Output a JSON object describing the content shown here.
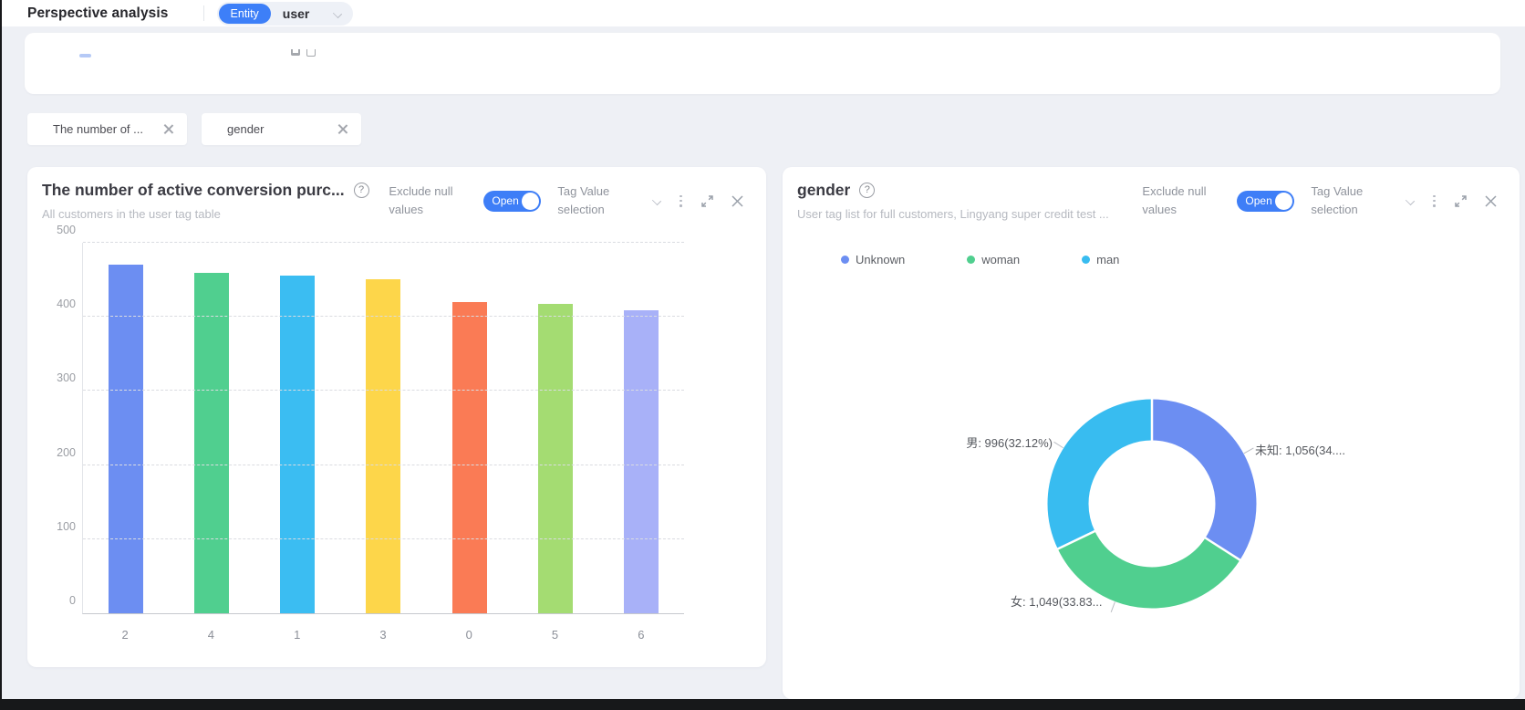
{
  "topbar": {
    "title": "Perspective analysis",
    "entity_badge": "Entity",
    "entity_value": "user"
  },
  "icons": {
    "help": "?"
  },
  "filter_tabs": [
    {
      "label": "The number of ..."
    },
    {
      "label": "gender"
    }
  ],
  "cards": [
    {
      "title": "The number of active conversion purc...",
      "subtitle": "All customers in the user tag table",
      "exclude_null_label": "Exclude null values",
      "toggle_label": "Open",
      "toggle_state": "on",
      "tag_value_label": "Tag Value selection"
    },
    {
      "title": "gender",
      "subtitle": "User tag list for full customers, Lingyang super credit test ...",
      "exclude_null_label": "Exclude null values",
      "toggle_label": "Open",
      "toggle_state": "on",
      "tag_value_label": "Tag Value selection"
    }
  ],
  "chart_data": [
    {
      "type": "bar",
      "title": "The number of active conversion purc...",
      "subtitle": "All customers in the user tag table",
      "categories": [
        "2",
        "4",
        "1",
        "3",
        "0",
        "5",
        "6"
      ],
      "values": [
        470,
        459,
        456,
        451,
        420,
        418,
        409
      ],
      "colors": [
        "#6c8ef2",
        "#50cf8f",
        "#3bbdf2",
        "#fdd64a",
        "#fa7b55",
        "#a4dc72",
        "#a8b1f8"
      ],
      "xlabel": "",
      "ylabel": "",
      "ylim": [
        0,
        500
      ],
      "yticks": [
        0,
        100,
        200,
        300,
        400,
        500
      ],
      "grid": "dashed-horizontal"
    },
    {
      "type": "pie",
      "subtype": "donut",
      "title": "gender",
      "legend_position": "top",
      "segments": [
        {
          "legend": "Unknown",
          "label": "未知: 1,056(34....",
          "value": 1056,
          "pct": 34.05,
          "color": "#6c8ef2"
        },
        {
          "legend": "woman",
          "label": "女: 1,049(33.83...",
          "value": 1049,
          "pct": 33.83,
          "color": "#50cf8f"
        },
        {
          "legend": "man",
          "label": "男: 996(32.12%)",
          "value": 996,
          "pct": 32.12,
          "color": "#38bcf0"
        }
      ]
    }
  ]
}
